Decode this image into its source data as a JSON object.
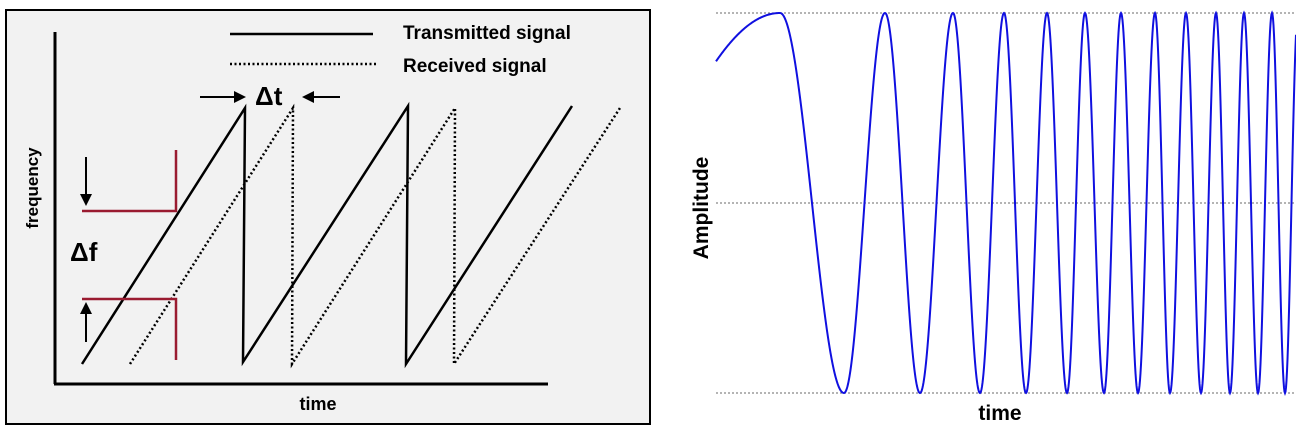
{
  "left_panel": {
    "legend": {
      "transmitted": "Transmitted signal",
      "received": "Received signal"
    },
    "delta_t_label": "Δt",
    "delta_f_label": "Δf",
    "y_axis_label": "frequency",
    "x_axis_label": "time",
    "colors": {
      "panel_background": "#f2f2f2",
      "marker": "#9a1b30",
      "lines": "#000000"
    }
  },
  "right_panel": {
    "y_axis_label": "Amplitude",
    "x_axis_label": "time",
    "colors": {
      "wave": "#1010e0",
      "reference_lines": "#888888"
    }
  }
}
